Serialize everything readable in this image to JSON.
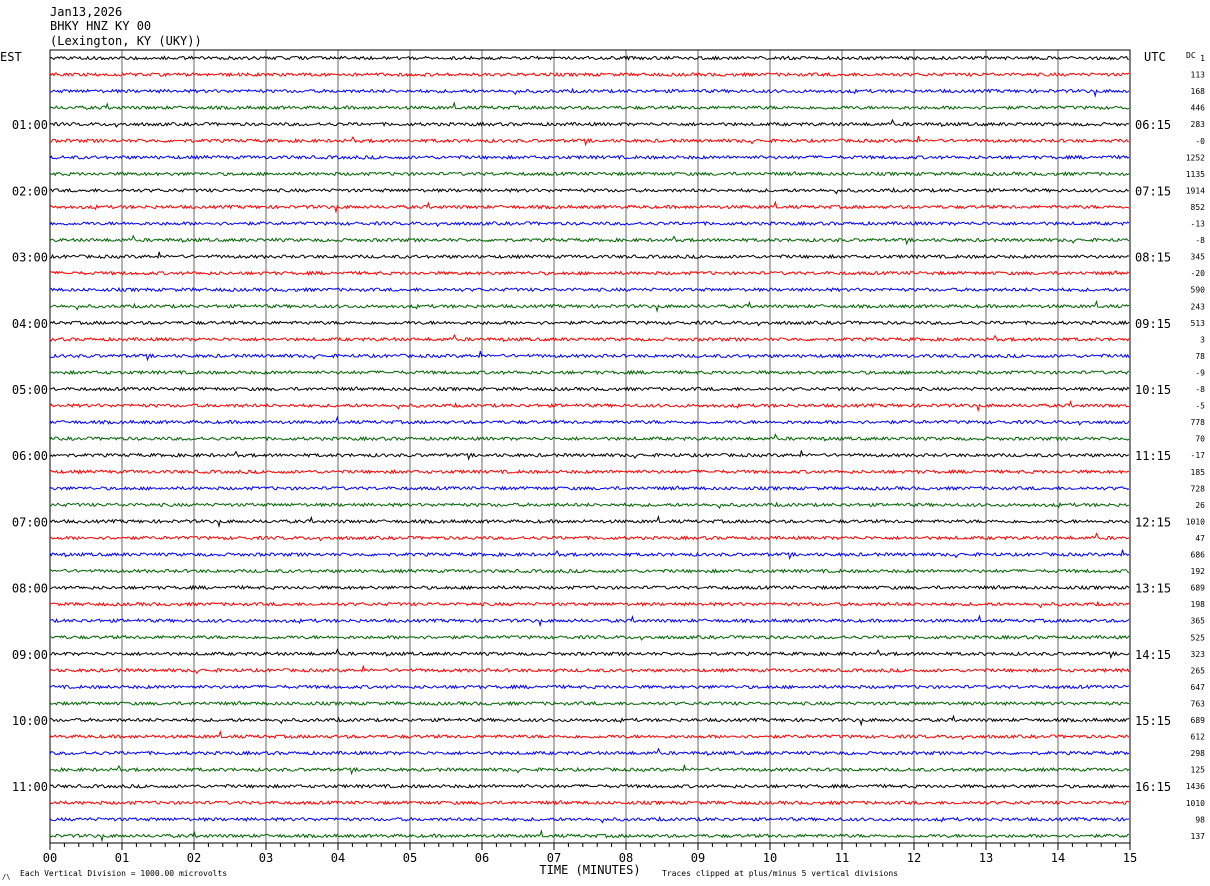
{
  "header": {
    "date": "Jan13,2026",
    "station": "BHKY HNZ KY 00",
    "location": "(Lexington, KY (UKY))"
  },
  "left_timezone": "EST",
  "right_timezone": "UTC",
  "dc_label": "DC",
  "footer": {
    "scale_note": "Each Vertical Division = 1000.00 microvolts",
    "xlabel": "TIME (MINUTES)",
    "clip_note": "Traces clipped at plus/minus 5 vertical divisions",
    "corner_mark": "/\\"
  },
  "colors": {
    "trace_cycle": [
      "#000000",
      "#ff0000",
      "#0000ff",
      "#006400"
    ],
    "grid": "#000000"
  },
  "chart_data": {
    "type": "line",
    "title": "BHKY HNZ KY 00",
    "xlabel": "TIME (MINUTES)",
    "xlim": [
      0,
      15
    ],
    "x_ticks": [
      "00",
      "01",
      "02",
      "03",
      "04",
      "05",
      "06",
      "07",
      "08",
      "09",
      "10",
      "11",
      "12",
      "13",
      "14",
      "15"
    ],
    "rows_per_hour": 4,
    "minutes_per_row": 15,
    "left_hour_labels": [
      {
        "row": 4,
        "label": "01:00"
      },
      {
        "row": 8,
        "label": "02:00"
      },
      {
        "row": 12,
        "label": "03:00"
      },
      {
        "row": 16,
        "label": "04:00"
      },
      {
        "row": 20,
        "label": "05:00"
      },
      {
        "row": 24,
        "label": "06:00"
      },
      {
        "row": 28,
        "label": "07:00"
      },
      {
        "row": 32,
        "label": "08:00"
      },
      {
        "row": 36,
        "label": "09:00"
      },
      {
        "row": 40,
        "label": "10:00"
      },
      {
        "row": 44,
        "label": "11:00"
      }
    ],
    "right_hour_labels": [
      {
        "row": 4,
        "label": "06:15"
      },
      {
        "row": 8,
        "label": "07:15"
      },
      {
        "row": 12,
        "label": "08:15"
      },
      {
        "row": 16,
        "label": "09:15"
      },
      {
        "row": 20,
        "label": "10:15"
      },
      {
        "row": 24,
        "label": "11:15"
      },
      {
        "row": 28,
        "label": "12:15"
      },
      {
        "row": 32,
        "label": "13:15"
      },
      {
        "row": 36,
        "label": "14:15"
      },
      {
        "row": 40,
        "label": "15:15"
      },
      {
        "row": 44,
        "label": "16:15"
      }
    ],
    "dc_offsets": [
      "1",
      "113",
      "168",
      "446",
      "283",
      "-0",
      "1252",
      "1135",
      "1914",
      "852",
      "-13",
      "-8",
      "345",
      "-20",
      "590",
      "243",
      "513",
      "3",
      "78",
      "-9",
      "-8",
      "-5",
      "778",
      "70",
      "-17",
      "185",
      "728",
      "26",
      "1010",
      "47",
      "686",
      "192",
      "689",
      "198",
      "365",
      "525",
      "323",
      "265",
      "647",
      "763",
      "689",
      "612",
      "298",
      "125",
      "1436",
      "1010",
      "98",
      "137"
    ],
    "series": [
      {
        "color": "black",
        "rows": [
          0,
          4,
          8,
          12,
          16,
          20,
          24,
          28,
          32,
          36,
          40,
          44
        ]
      },
      {
        "color": "red",
        "rows": [
          1,
          5,
          9,
          13,
          17,
          21,
          25,
          29,
          33,
          37,
          41,
          45
        ]
      },
      {
        "color": "blue",
        "rows": [
          2,
          6,
          10,
          14,
          18,
          22,
          26,
          30,
          34,
          38,
          42,
          46
        ]
      },
      {
        "color": "green",
        "rows": [
          3,
          7,
          11,
          15,
          19,
          23,
          27,
          31,
          35,
          39,
          43,
          47
        ]
      }
    ],
    "grid": true
  }
}
